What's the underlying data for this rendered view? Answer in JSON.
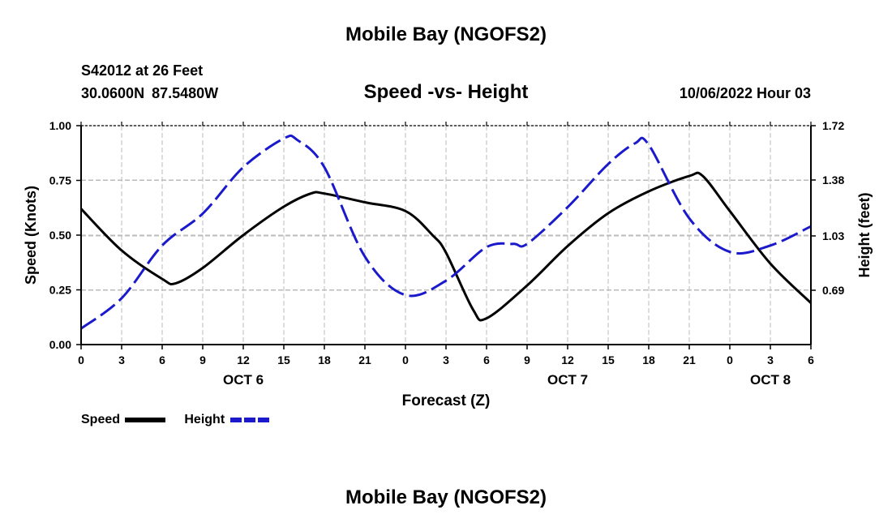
{
  "title": "Mobile Bay (NGOFS2)",
  "footer_title": "Mobile Bay (NGOFS2)",
  "station": "S42012 at 26 Feet",
  "coordinates": "30.0600N 87.5480W",
  "subtitle": "Speed -vs- Height",
  "datetime": "10/06/2022 Hour 03",
  "colors": {
    "speed": "#000000",
    "height": "#1a1acc",
    "grid": "#bbbbbb"
  },
  "chart_data": {
    "type": "line",
    "title": "Speed -vs- Height",
    "xlabel": "Forecast (Z)",
    "ylabel": "Speed (Knots)",
    "ylabel_right": "Height (feet)",
    "xlim": [
      0,
      54
    ],
    "ylim": [
      0,
      1
    ],
    "ylim_right": [
      0.35,
      1.72
    ],
    "x_tick_values": [
      0,
      3,
      6,
      9,
      12,
      15,
      18,
      21,
      24,
      27,
      30,
      33,
      36,
      39,
      42,
      45,
      48,
      51,
      54
    ],
    "x_tick_labels": [
      "0",
      "3",
      "6",
      "9",
      "12",
      "15",
      "18",
      "21",
      "0",
      "3",
      "6",
      "9",
      "12",
      "15",
      "18",
      "21",
      "0",
      "3",
      "6"
    ],
    "date_labels": [
      {
        "x": 12,
        "label": "OCT 6"
      },
      {
        "x": 36,
        "label": "OCT 7"
      },
      {
        "x": 51,
        "label": "OCT 8"
      }
    ],
    "y_ticks_left": [
      "0.00",
      "0.25",
      "0.50",
      "0.75",
      "1.00"
    ],
    "y_ticks_right": [
      "0.69",
      "1.03",
      "1.38",
      "1.72"
    ],
    "grid": true,
    "series": [
      {
        "name": "Speed",
        "axis": "left",
        "style": "solid",
        "x": [
          0,
          3,
          6,
          7,
          9,
          12,
          15,
          17,
          18,
          21,
          24,
          26,
          27,
          29,
          30,
          33,
          36,
          39,
          42,
          45,
          46,
          48,
          51,
          54
        ],
        "values": [
          0.62,
          0.43,
          0.3,
          0.28,
          0.35,
          0.5,
          0.63,
          0.69,
          0.69,
          0.65,
          0.61,
          0.5,
          0.42,
          0.16,
          0.12,
          0.27,
          0.45,
          0.6,
          0.7,
          0.77,
          0.77,
          0.61,
          0.37,
          0.19
        ]
      },
      {
        "name": "Height",
        "axis": "right",
        "style": "dashed",
        "x": [
          0,
          3,
          6,
          9,
          12,
          15,
          16,
          18,
          21,
          24,
          27,
          30,
          32,
          33,
          36,
          39,
          41,
          42,
          45,
          48,
          51,
          54
        ],
        "values": [
          0.45,
          0.64,
          0.97,
          1.17,
          1.46,
          1.64,
          1.63,
          1.46,
          0.9,
          0.66,
          0.75,
          0.96,
          0.98,
          0.98,
          1.21,
          1.48,
          1.61,
          1.6,
          1.14,
          0.93,
          0.97,
          1.09
        ]
      }
    ],
    "legend": {
      "placement": "bottom-left",
      "entries": [
        "Speed",
        "Height"
      ]
    }
  }
}
